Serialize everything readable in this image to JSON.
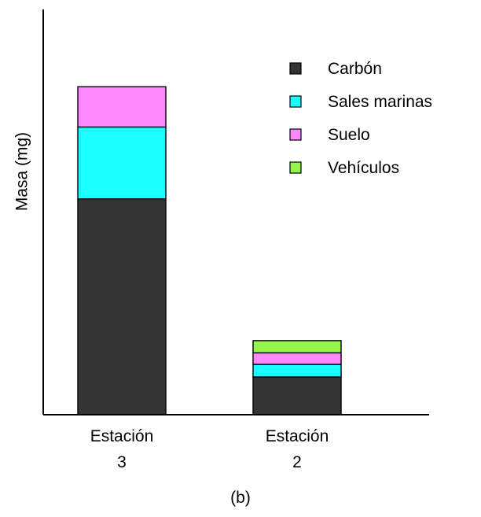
{
  "chart_data": {
    "type": "bar",
    "stacked": true,
    "title": "",
    "xlabel": "",
    "ylabel": "Masa (mg)",
    "categories": [
      [
        "Estación",
        "3"
      ],
      [
        "Estación",
        "2"
      ]
    ],
    "series": [
      {
        "name": "Carbón",
        "color": "#353535",
        "values": [
          60,
          10.5
        ]
      },
      {
        "name": "Sales marinas",
        "color": "#17FFFF",
        "values": [
          20,
          3.5
        ]
      },
      {
        "name": "Suelo",
        "color": "#FF88FF",
        "values": [
          11.2,
          3.2
        ]
      },
      {
        "name": "Vehículos",
        "color": "#95F54A",
        "values": [
          0,
          3.4
        ]
      }
    ],
    "ylim": [
      0,
      100
    ],
    "yticks": [],
    "grid": false,
    "legend_position": "top-right",
    "caption": "(b)"
  }
}
